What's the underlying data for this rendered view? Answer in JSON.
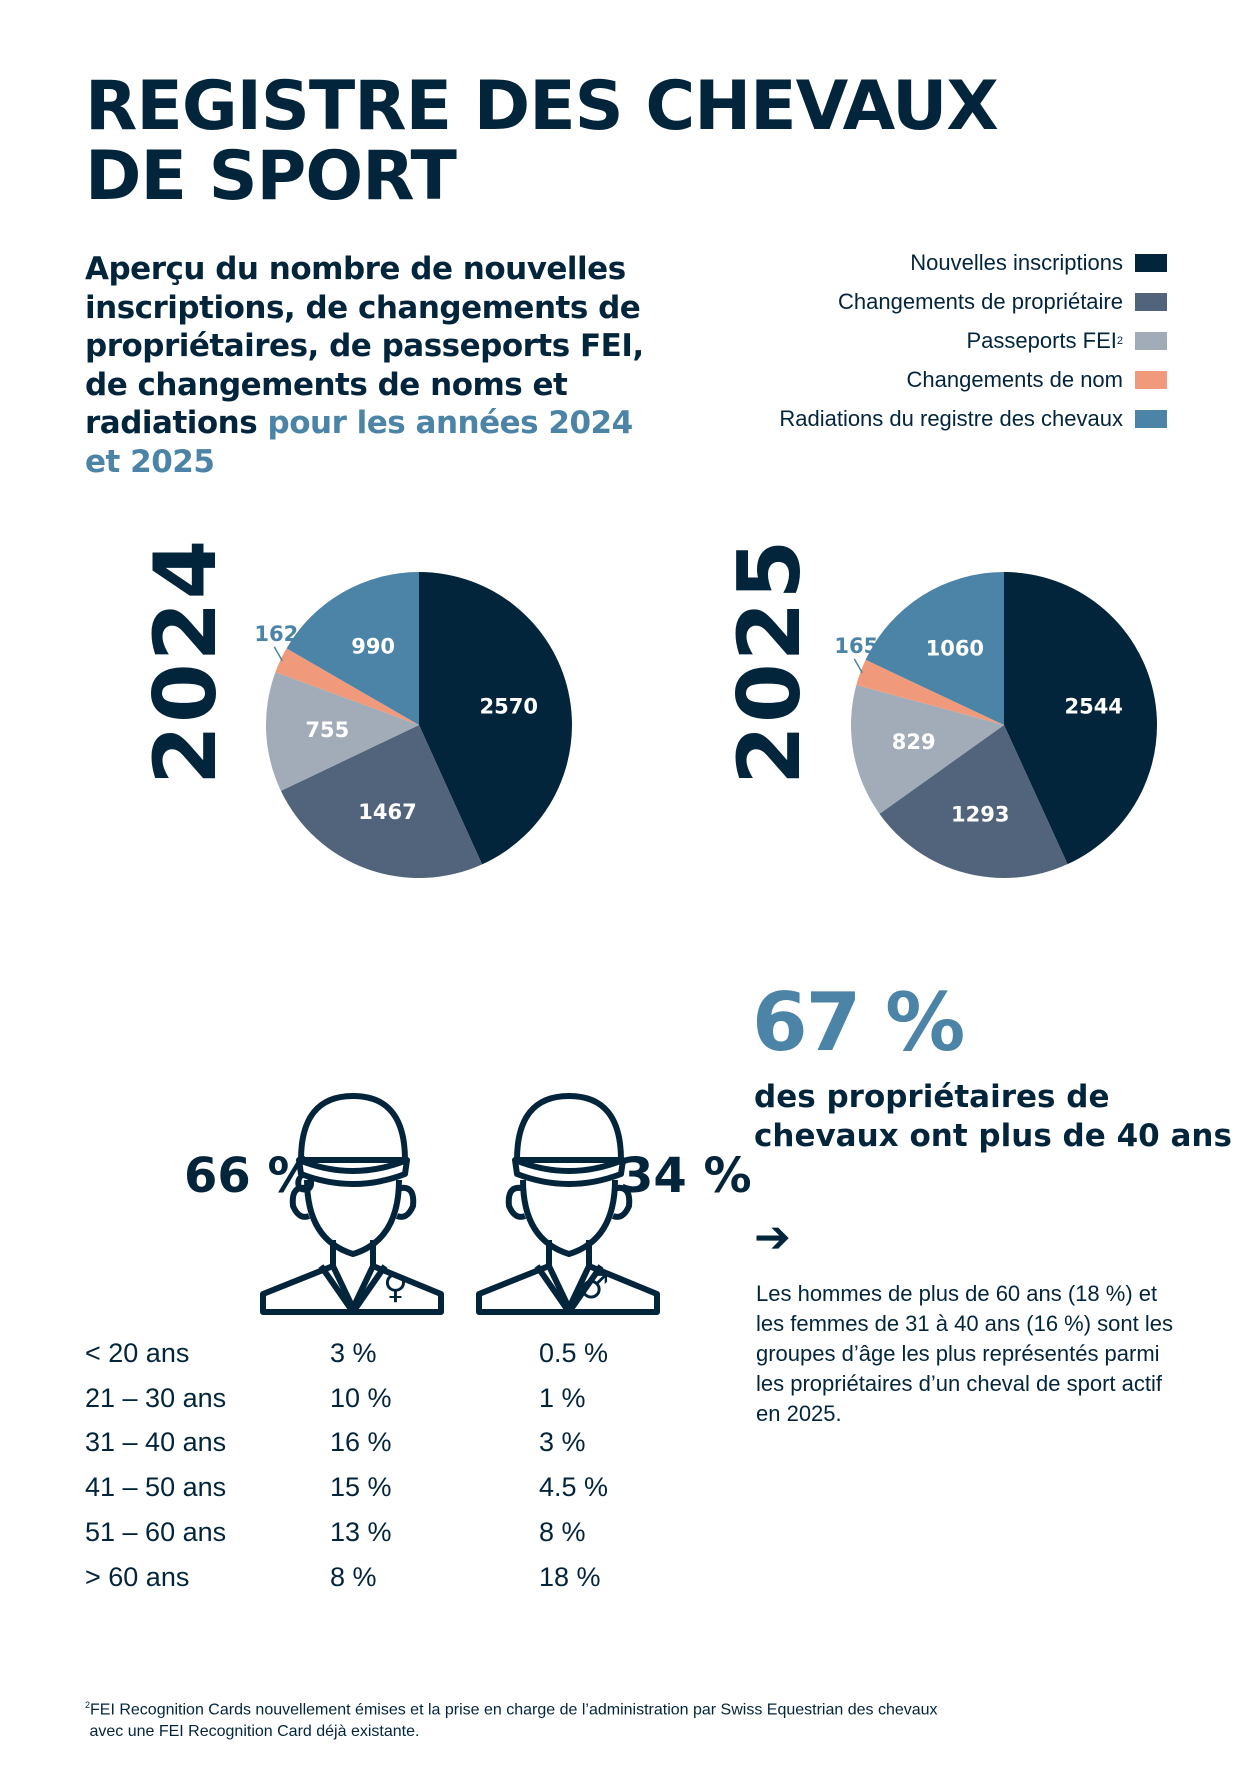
{
  "title": [
    "REGISTRE DES CHEVAUX",
    "DE SPORT"
  ],
  "subtitle": {
    "main": "Aperçu du nombre de nouvelles inscriptions, de changements de propriétaires, de passeports FEI, de changements de noms et radiations",
    "highlight": "pour les années 2024 et 2025"
  },
  "legend": [
    {
      "label": "Nouvelles inscriptions",
      "sup": "",
      "color": "#03253b"
    },
    {
      "label": "Changements de propriétaire",
      "sup": "",
      "color": "#52647b"
    },
    {
      "label": "Passeports FEI",
      "sup": "2",
      "color": "#a2abb8"
    },
    {
      "label": "Changements de nom",
      "sup": "",
      "color": "#f09a7b"
    },
    {
      "label": "Radiations du registre des chevaux",
      "sup": "",
      "color": "#4b84a6"
    }
  ],
  "chart_data": [
    {
      "type": "pie",
      "title": "2024",
      "categories": [
        "Nouvelles inscriptions",
        "Changements de propriétaire",
        "Passeports FEI",
        "Radiations du registre des chevaux",
        "Changements de nom"
      ],
      "values": [
        2570,
        1467,
        755,
        162,
        990
      ]
    },
    {
      "type": "pie",
      "title": "2025",
      "categories": [
        "Nouvelles inscriptions",
        "Changements de propriétaire",
        "Passeports FEI",
        "Radiations du registre des chevaux",
        "Changements de nom"
      ],
      "values": [
        2544,
        1293,
        829,
        165,
        1060
      ]
    }
  ],
  "owners": {
    "big_pct": "67 %",
    "big_text": [
      "des propriétaires de",
      "chevaux ont plus de 40 ans"
    ],
    "arrow": "➔",
    "paragraph": "Les hommes de plus de 60 ans (18 %) et les femmes de 31 à 40 ans (16 %) sont les groupes d’âge les plus représentés parmi les propriétaires d’un cheval de sport actif en 2025.",
    "female_pct": "66 %",
    "male_pct": "34 %",
    "female_symbol": "♀",
    "male_symbol": "♂",
    "rows": [
      {
        "age": "< 20 ans",
        "female": "3 %",
        "male": "0.5 %"
      },
      {
        "age": "21 – 30 ans",
        "female": "10 %",
        "male": "1 %"
      },
      {
        "age": "31 – 40 ans",
        "female": "16 %",
        "male": "3 %"
      },
      {
        "age": "41 – 50 ans",
        "female": "15 %",
        "male": "4.5 %"
      },
      {
        "age": "51 – 60 ans",
        "female": "13 %",
        "male": "8 %"
      },
      {
        "age": "> 60 ans",
        "female": "8 %",
        "male": "18 %"
      }
    ]
  },
  "footnote": {
    "sup": "2",
    "lines": [
      "FEI Recognition Cards nouvellement émises et la prise en charge de l’administration par Swiss Equestrian des chevaux",
      "avec une FEI Recognition Card déjà existante."
    ]
  }
}
